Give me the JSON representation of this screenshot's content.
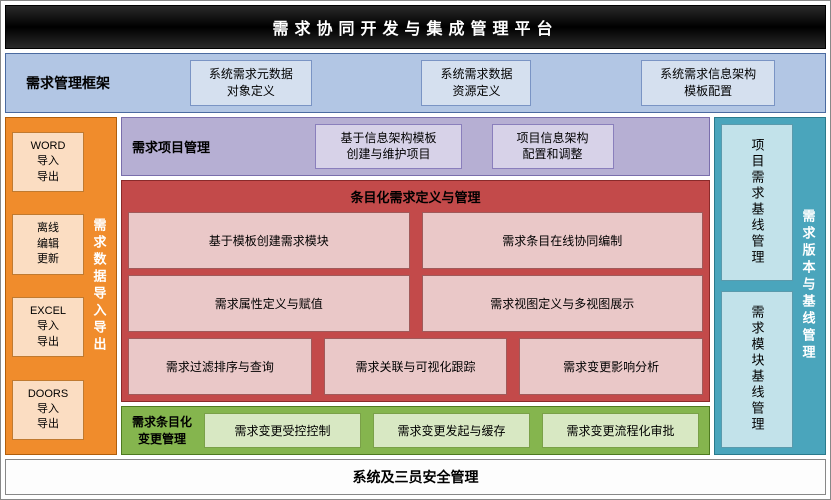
{
  "title": "需求协同开发与集成管理平台",
  "framework": {
    "label": "需求管理框架",
    "boxes": [
      "系统需求元数据\n对象定义",
      "系统需求数据\n资源定义",
      "系统需求信息架构\n模板配置"
    ]
  },
  "left": {
    "label": "需求数据导入导出",
    "boxes": [
      "WORD\n导入\n导出",
      "离线\n编辑\n更新",
      "EXCEL\n导入\n导出",
      "DOORS\n导入\n导出"
    ]
  },
  "project": {
    "label": "需求项目管理",
    "boxes": [
      "基于信息架构模板\n创建与维护项目",
      "项目信息架构\n配置和调整"
    ]
  },
  "red": {
    "title": "条目化需求定义与管理",
    "rows": [
      [
        "基于模板创建需求模块",
        "需求条目在线协同编制"
      ],
      [
        "需求属性定义与赋值",
        "需求视图定义与多视图展示"
      ],
      [
        "需求过滤排序与查询",
        "需求关联与可视化跟踪",
        "需求变更影响分析"
      ]
    ]
  },
  "green": {
    "label": "需求条目化\n变更管理",
    "boxes": [
      "需求变更受控控制",
      "需求变更发起与缓存",
      "需求变更流程化审批"
    ]
  },
  "right": {
    "label": "需求版本与基线管理",
    "boxes": [
      "项目需求基线管理",
      "需求模块基线管理"
    ]
  },
  "bottom": "系统及三员安全管理",
  "colors": {
    "title_bg": "#000000",
    "title_fg": "#ffffff",
    "blue_bg": "#b2c6e4",
    "blue_border": "#4a6aa0",
    "lt_blue_bg": "#d5e0ef",
    "orange_bg": "#f08c2c",
    "orange_border": "#b05e0c",
    "lt_orange_bg": "#fbddc2",
    "purple_bg": "#b6afd3",
    "purple_border": "#7a6eac",
    "lt_purple_bg": "#d7d2e8",
    "red_bg": "#c34a4a",
    "red_border": "#8a2a2a",
    "pink_bg": "#eac8c8",
    "green_bg": "#85b54e",
    "green_border": "#4e7a20",
    "lt_green_bg": "#d8e8c3",
    "cyan_bg": "#4aa5bc",
    "cyan_border": "#2a7a8c",
    "lt_cyan_bg": "#c2e2ea"
  },
  "type": "architecture-diagram"
}
